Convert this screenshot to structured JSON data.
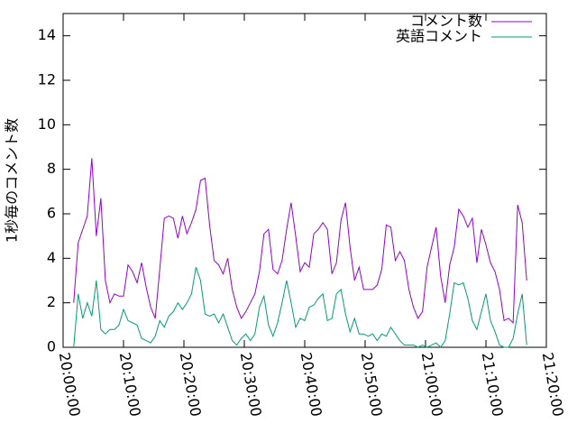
{
  "chart_data": {
    "type": "line",
    "y_label": "1秒毎のコメント数",
    "x": [
      "20:01:45",
      "20:02:30",
      "20:03:15",
      "20:04:00",
      "20:04:45",
      "20:05:30",
      "20:06:15",
      "20:07:00",
      "20:07:45",
      "20:08:30",
      "20:09:15",
      "20:10:00",
      "20:10:45",
      "20:11:30",
      "20:12:15",
      "20:13:00",
      "20:13:45",
      "20:14:30",
      "20:15:15",
      "20:16:00",
      "20:16:45",
      "20:17:30",
      "20:18:15",
      "20:19:00",
      "20:19:45",
      "20:20:30",
      "20:21:15",
      "20:22:00",
      "20:22:45",
      "20:23:30",
      "20:24:15",
      "20:25:00",
      "20:25:45",
      "20:26:30",
      "20:27:15",
      "20:28:00",
      "20:28:45",
      "20:29:30",
      "20:30:15",
      "20:31:00",
      "20:31:45",
      "20:32:30",
      "20:33:15",
      "20:34:00",
      "20:34:45",
      "20:35:30",
      "20:36:15",
      "20:37:00",
      "20:37:45",
      "20:38:30",
      "20:39:15",
      "20:40:00",
      "20:40:45",
      "20:41:30",
      "20:42:15",
      "20:43:00",
      "20:43:45",
      "20:44:30",
      "20:45:15",
      "20:46:00",
      "20:46:45",
      "20:47:30",
      "20:48:15",
      "20:49:00",
      "20:49:45",
      "20:50:30",
      "20:51:15",
      "20:52:00",
      "20:52:45",
      "20:53:30",
      "20:54:15",
      "20:55:00",
      "20:55:45",
      "20:56:30",
      "20:57:15",
      "20:58:00",
      "20:58:45",
      "20:59:30",
      "21:00:15",
      "21:01:00",
      "21:01:45",
      "21:02:30",
      "21:03:15",
      "21:04:00",
      "21:04:45",
      "21:05:30",
      "21:06:15",
      "21:07:00",
      "21:07:45",
      "21:08:30",
      "21:09:15",
      "21:10:00",
      "21:10:45",
      "21:11:30",
      "21:12:15",
      "21:13:00",
      "21:13:45",
      "21:14:30",
      "21:15:15",
      "21:16:00",
      "21:16:45"
    ],
    "series": [
      {
        "name": "コメント数",
        "color": "#9400d3",
        "values": [
          2.0,
          4.7,
          5.3,
          5.9,
          8.5,
          5.0,
          6.7,
          3.0,
          2.0,
          2.4,
          2.3,
          2.3,
          3.7,
          3.4,
          2.9,
          3.8,
          2.7,
          1.8,
          1.3,
          3.5,
          5.8,
          5.9,
          5.8,
          4.9,
          5.9,
          5.1,
          5.6,
          6.2,
          7.5,
          7.6,
          5.5,
          3.9,
          3.7,
          3.3,
          4.0,
          2.6,
          1.8,
          1.3,
          1.6,
          2.0,
          2.4,
          3.4,
          5.1,
          5.3,
          3.5,
          3.3,
          3.9,
          5.3,
          6.5,
          5.0,
          3.4,
          3.8,
          3.6,
          5.1,
          5.3,
          5.6,
          5.3,
          3.3,
          3.8,
          5.7,
          6.5,
          4.5,
          3.0,
          3.6,
          2.6,
          2.6,
          2.6,
          2.8,
          3.5,
          5.5,
          5.4,
          3.9,
          4.3,
          3.9,
          2.6,
          1.8,
          1.3,
          1.6,
          3.6,
          4.5,
          5.4,
          3.2,
          2.0,
          3.7,
          4.5,
          6.2,
          5.9,
          5.4,
          5.8,
          3.8,
          5.3,
          4.6,
          3.8,
          3.4,
          2.6,
          1.2,
          1.3,
          1.1,
          6.4,
          5.6,
          3.0
        ]
      },
      {
        "name": "英語コメント",
        "color": "#009e73",
        "values": [
          0,
          2.4,
          1.3,
          2.0,
          1.4,
          3.0,
          0.8,
          0.6,
          0.8,
          0.8,
          1.0,
          1.7,
          1.2,
          1.1,
          1.0,
          0.4,
          0.3,
          0.2,
          0.5,
          1.2,
          0.9,
          1.4,
          1.6,
          2.0,
          1.7,
          2.0,
          2.4,
          3.6,
          3.0,
          1.5,
          1.4,
          1.5,
          1.1,
          1.5,
          0.9,
          0.3,
          0.1,
          0.4,
          0.6,
          0.3,
          0.6,
          1.8,
          2.3,
          1.0,
          0.5,
          1.1,
          2.0,
          3.0,
          2.0,
          0.9,
          1.3,
          1.2,
          1.8,
          1.9,
          2.2,
          2.4,
          1.2,
          1.3,
          2.4,
          2.6,
          1.5,
          0.7,
          1.3,
          0.6,
          0.6,
          0.5,
          0.6,
          0.3,
          0.6,
          0.5,
          0.9,
          0.6,
          0.3,
          0.1,
          0.1,
          0.1,
          0,
          0.1,
          0,
          0.1,
          0.2,
          0,
          0.3,
          1.5,
          2.9,
          2.8,
          2.9,
          2.2,
          1.2,
          0.8,
          1.6,
          2.4,
          1.2,
          0.7,
          0.1,
          0,
          0,
          0.4,
          1.5,
          2.4,
          0.1
        ]
      }
    ],
    "xlim": [
      "20:00:00",
      "21:20:00"
    ],
    "xticks": [
      "20:00:00",
      "20:10:00",
      "20:20:00",
      "20:30:00",
      "20:40:00",
      "20:50:00",
      "21:00:00",
      "21:10:00",
      "21:20:00"
    ],
    "ylim": [
      0,
      15
    ],
    "yticks": [
      0,
      2,
      4,
      6,
      8,
      10,
      12,
      14
    ],
    "legend": "top-right",
    "grid": false
  }
}
